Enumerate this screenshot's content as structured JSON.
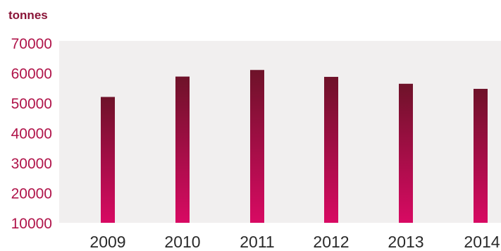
{
  "chart_data": {
    "type": "bar",
    "unit_label": "tonnes",
    "title": "",
    "xlabel": "",
    "ylabel": "",
    "categories": [
      "2009",
      "2010",
      "2011",
      "2012",
      "2013",
      "2014"
    ],
    "values": [
      52000,
      58800,
      61000,
      58700,
      56400,
      54700
    ],
    "ylim": [
      10000,
      70000
    ],
    "yticks": [
      10000,
      20000,
      30000,
      40000,
      50000,
      60000,
      70000
    ],
    "ytick_labels": [
      "10000",
      "20000",
      "30000",
      "40000",
      "50000",
      "60000",
      "70000"
    ],
    "grid": false,
    "legend": "none",
    "colors": {
      "bar_top": "#6e1229",
      "bar_bottom": "#d80a63",
      "plot_background": "#f1efef",
      "axis_text": "#b0144a",
      "unit_text": "#8a1538"
    }
  }
}
